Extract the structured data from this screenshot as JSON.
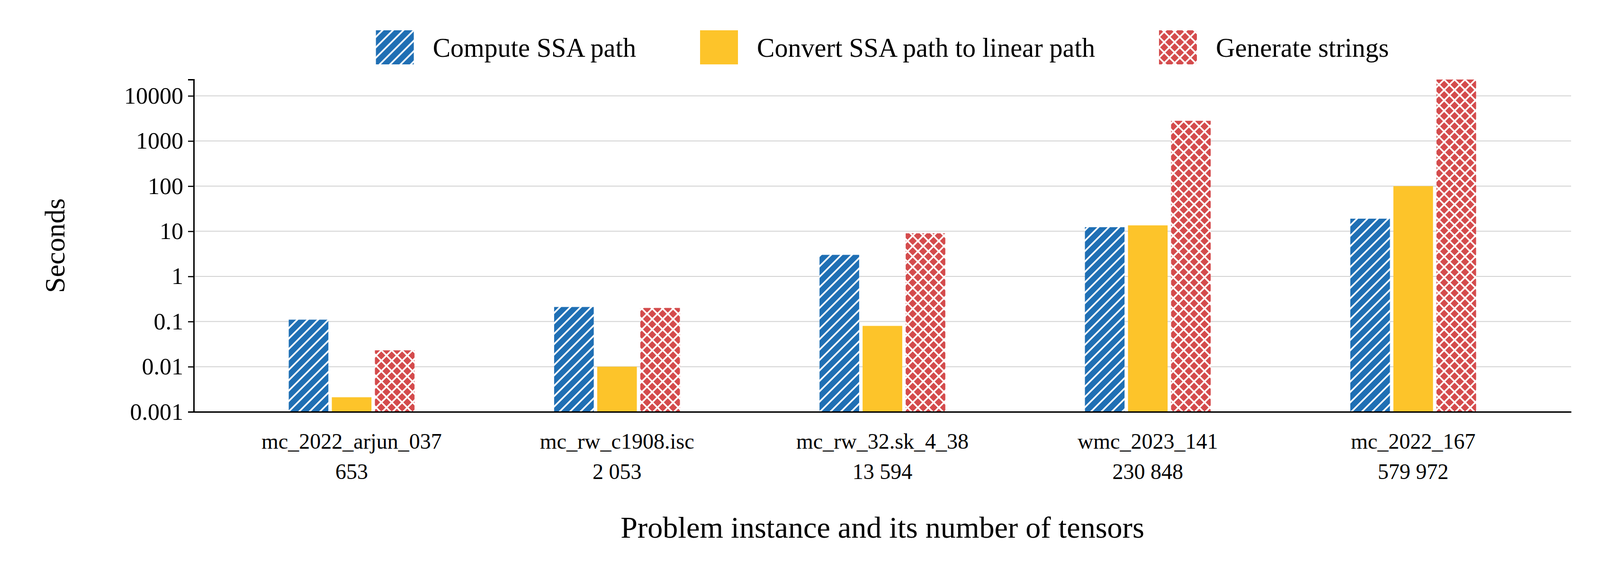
{
  "chart_data": {
    "type": "bar",
    "x_label": "Problem instance and its number of tensors",
    "y_label": "Seconds",
    "categories": [
      "mc_2022_arjun_037",
      "mc_rw_c1908.isc",
      "mc_rw_32.sk_4_38",
      "wmc_2023_141",
      "mc_2022_167"
    ],
    "tensor_counts": [
      653,
      {
        "value": 2053,
        "label": "2 053"
      },
      {
        "value": 13594,
        "label": "13 594"
      },
      {
        "value": 230848,
        "label": "230 848"
      },
      {
        "value": 579972,
        "label": "579 972"
      }
    ],
    "series": [
      {
        "name": "Compute SSA path",
        "color": "#1f6fb4",
        "values": [
          0.11,
          0.21,
          3.0,
          12.3,
          19
        ]
      },
      {
        "name": "Convert SSA path to linear path",
        "color": "#fdc42a",
        "values": [
          0.0021,
          0.01,
          0.08,
          13.5,
          100
        ]
      },
      {
        "name": "Generate strings",
        "color": "#d44b4c",
        "values": [
          0.023,
          0.2,
          9,
          2800,
          23000
        ]
      }
    ],
    "ylim": [
      0.001,
      23000
    ],
    "yticks": [
      0.001,
      0.01,
      0.1,
      1,
      10,
      100,
      1000,
      10000
    ],
    "log": "y",
    "grid": true,
    "legend": "top"
  }
}
